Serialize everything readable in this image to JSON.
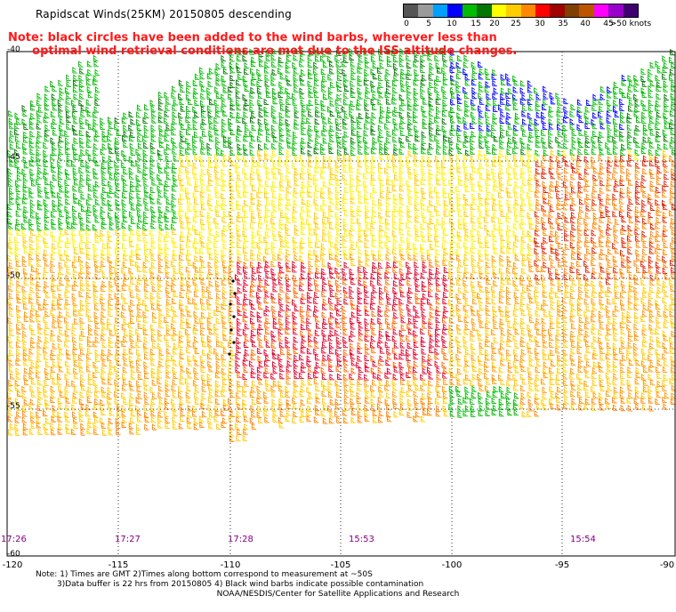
{
  "title": "Rapidscat Winds(25KM) 20150805 descending",
  "red_note": {
    "line1": "Note: black circles have been added to the wind barbs, wherever less than",
    "line2": "optimal wind retrieval conditions are met due to the ISS altitude changes."
  },
  "legend": {
    "colors": [
      "#555555",
      "#9a9a9a",
      "#00a0ff",
      "#0000ff",
      "#00bb00",
      "#007700",
      "#ffff00",
      "#ffcc00",
      "#ff8800",
      "#ff0000",
      "#a00000",
      "#804000",
      "#bb5500",
      "#ff00ff",
      "#9900cc",
      "#400070"
    ],
    "labels": [
      "0",
      "5",
      "10",
      "15",
      "20",
      "25",
      "30",
      "35",
      "40",
      "45",
      ">50 knots"
    ]
  },
  "axes": {
    "lat_labels": [
      "-40",
      "-45",
      "-50",
      "-55",
      "-60"
    ],
    "lon_labels": [
      "-120",
      "-115",
      "-110",
      "-105",
      "-100",
      "-95",
      "-90"
    ]
  },
  "times": [
    "17:26",
    "17:27",
    "17:28",
    "15:53",
    "15:54"
  ],
  "footnote": {
    "line1": "Note: 1) Times are GMT 2)Times along bottom correspond to measurement at ~50S",
    "line2": "3)Data buffer is 22 hrs from 20150805 4) Black wind barbs indicate possible contamination",
    "line3": "NOAA/NESDIS/Center for Satellite Applications and Research"
  },
  "wind_color_zones": [
    {
      "region": "north (-40 to -46)",
      "color": "#00bb00"
    },
    {
      "region": "north-east (-40 to -43, -105 to -92)",
      "color": "#0000ff"
    },
    {
      "region": "central (-46 to -50)",
      "color": "#ffff00"
    },
    {
      "region": "core (-50 to -54, -110 to -101)",
      "color": "#ff0000"
    },
    {
      "region": "east (-46 to -50, -97 to -90)",
      "color": "#ff8800"
    },
    {
      "region": "south (-54 to -57)",
      "color": "#ffcc00"
    }
  ]
}
